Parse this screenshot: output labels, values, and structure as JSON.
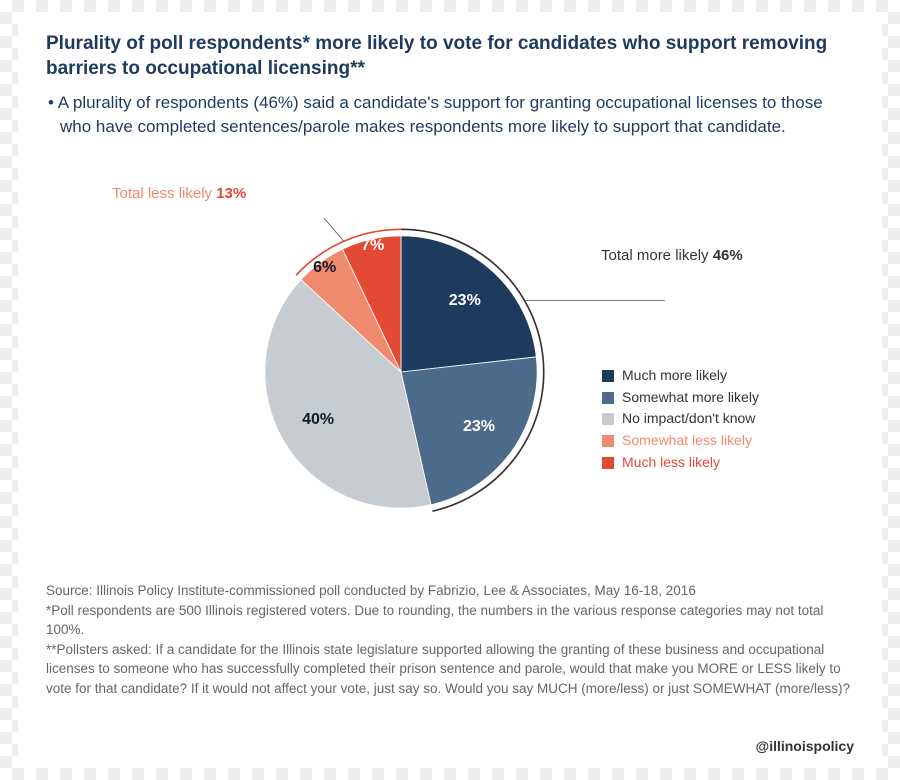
{
  "title": "Plurality of poll respondents* more likely to vote for candidates who support removing barriers to occupational licensing**",
  "bullet": "• A plurality of respondents (46%) said a candidate's support for granting occupational licenses to those who have completed sentences/parole makes respondents more likely to support that candidate.",
  "chart": {
    "type": "pie",
    "background_color": "#ffffff",
    "slices": [
      {
        "key": "much_more",
        "label": "Much more likely",
        "value": 23,
        "pct": "23%",
        "color": "#1f3a5f",
        "text_color": "#ffffff"
      },
      {
        "key": "somewhat_more",
        "label": "Somewhat more likely",
        "value": 23,
        "pct": "23%",
        "color": "#4c6a8a",
        "text_color": "#ffffff"
      },
      {
        "key": "no_impact",
        "label": "No impact/don't know",
        "value": 40,
        "pct": "40%",
        "color": "#c7ccd1",
        "text_color": "#1f3a5f"
      },
      {
        "key": "somewhat_less",
        "label": "Somewhat less likely",
        "value": 6,
        "pct": "6%",
        "color": "#f08a6e",
        "text_color": "#1f3a5f"
      },
      {
        "key": "much_less",
        "label": "Much less likely",
        "value": 7,
        "pct": "7%",
        "color": "#e24a33",
        "text_color": "#ffffff"
      }
    ],
    "arcs": {
      "more": {
        "text": "Total more likely",
        "pct": "46%",
        "value": 46,
        "color": "#333333"
      },
      "less": {
        "text": "Total less likely",
        "pct": "13%",
        "value": 13,
        "color_text": "#f08a6e",
        "color_pct": "#e24a33"
      }
    },
    "legend_label_fontsize": 14,
    "slice_label_fontsize": 16,
    "start_angle_deg": -90,
    "outer_arc_gap": 8,
    "outer_arc_width": 2,
    "radius": 165
  },
  "legend": {
    "items": [
      {
        "label": "Much more likely",
        "color": "#1f3a5f",
        "text_color": "#333333"
      },
      {
        "label": "Somewhat more likely",
        "color": "#4c6a8a",
        "text_color": "#333333"
      },
      {
        "label": "No impact/don't know",
        "color": "#c7ccd1",
        "text_color": "#333333"
      },
      {
        "label": "Somewhat less likely",
        "color": "#f08a6e",
        "text_color": "#f08a6e"
      },
      {
        "label": "Much less likely",
        "color": "#e24a33",
        "text_color": "#e24a33"
      }
    ]
  },
  "footnotes": [
    "Source: Illinois Policy Institute-commissioned poll conducted by Fabrizio, Lee & Associates, May 16-18, 2016",
    "*Poll respondents are 500 Illinois registered voters. Due to rounding, the numbers in the various response categories may not total 100%.",
    "**Pollsters asked: If a candidate for the Illinois state legislature supported allowing the granting of these business and occupational licenses to someone who has successfully completed their prison sentence and parole, would that make you MORE or LESS likely to vote for that candidate? If it would not affect your vote, just say so. Would you say MUCH (more/less) or just SOMEWHAT (more/less)?"
  ],
  "handle": "@illinoispolicy"
}
